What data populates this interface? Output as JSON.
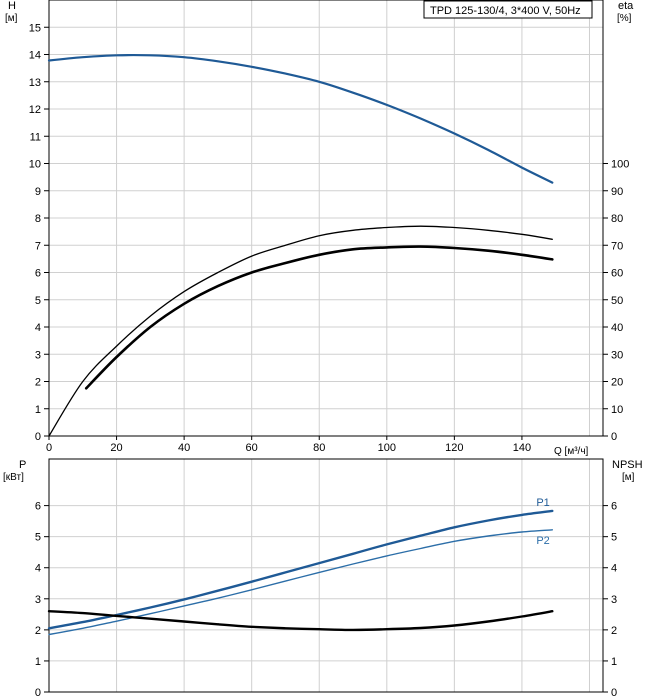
{
  "chart_data": [
    {
      "type": "line",
      "title": "TPD 125-130/4, 3*400 V, 50Hz",
      "y_axis_left": {
        "label": "H",
        "unit": "[м]",
        "range": [
          0,
          16
        ],
        "ticks": [
          "0",
          "1",
          "2",
          "3",
          "4",
          "5",
          "6",
          "7",
          "8",
          "9",
          "10",
          "11",
          "12",
          "13",
          "14",
          "15"
        ]
      },
      "y_axis_right": {
        "label": "eta",
        "unit": "[%]",
        "range": [
          0,
          160
        ],
        "ticks": [
          "0",
          "10",
          "20",
          "30",
          "40",
          "50",
          "60",
          "70",
          "80",
          "90",
          "100"
        ]
      },
      "x_axis": {
        "label": "Q [м³/ч]",
        "range": [
          0,
          164
        ],
        "ticks": [
          "0",
          "20",
          "40",
          "60",
          "80",
          "100",
          "120",
          "140"
        ]
      },
      "grid": true,
      "series": [
        {
          "axis": "left",
          "color": "#1f5a96",
          "x": [
            0,
            10,
            20,
            30,
            40,
            50,
            60,
            70,
            80,
            90,
            100,
            110,
            120,
            130,
            140,
            149
          ],
          "y": [
            13.78,
            13.9,
            13.97,
            13.97,
            13.9,
            13.75,
            13.55,
            13.3,
            13.0,
            12.6,
            12.15,
            11.65,
            11.1,
            10.5,
            9.85,
            9.3
          ]
        },
        {
          "axis": "right",
          "color": "#000000",
          "x": [
            0,
            10,
            20,
            30,
            40,
            50,
            60,
            70,
            80,
            90,
            100,
            110,
            120,
            130,
            140,
            149
          ],
          "y": [
            0,
            20,
            33,
            44,
            53,
            60,
            66,
            70,
            73.5,
            75.5,
            76.5,
            77,
            76.5,
            75.5,
            74,
            72.2
          ]
        },
        {
          "axis": "right",
          "color": "#000000",
          "x": [
            11,
            20,
            30,
            40,
            50,
            60,
            70,
            80,
            90,
            100,
            110,
            120,
            130,
            140,
            149
          ],
          "y": [
            17.5,
            29,
            40,
            48.5,
            55,
            60,
            63.5,
            66.5,
            68.5,
            69.2,
            69.5,
            69,
            68,
            66.5,
            64.8
          ]
        }
      ]
    },
    {
      "type": "line",
      "y_axis_left": {
        "label": "P",
        "unit": "[кВт]",
        "range": [
          0,
          7.5
        ],
        "ticks": [
          "0",
          "1",
          "2",
          "3",
          "4",
          "5",
          "6"
        ]
      },
      "y_axis_right": {
        "label": "NPSH",
        "unit": "[м]",
        "range": [
          0,
          7.5
        ],
        "ticks": [
          "0",
          "1",
          "2",
          "3",
          "4",
          "5",
          "6"
        ]
      },
      "x_axis": {
        "range": [
          0,
          164
        ]
      },
      "grid": true,
      "series": [
        {
          "name": "P1",
          "axis": "left",
          "color": "#1f5a96",
          "x": [
            0,
            10,
            20,
            30,
            40,
            50,
            60,
            70,
            80,
            90,
            100,
            110,
            120,
            130,
            140,
            149
          ],
          "y": [
            2.05,
            2.25,
            2.48,
            2.72,
            2.98,
            3.26,
            3.55,
            3.85,
            4.15,
            4.45,
            4.75,
            5.03,
            5.3,
            5.52,
            5.7,
            5.83
          ]
        },
        {
          "name": "P2",
          "axis": "left",
          "color": "#2c6ea8",
          "x": [
            0,
            10,
            20,
            30,
            40,
            50,
            60,
            70,
            80,
            90,
            100,
            110,
            120,
            130,
            140,
            149
          ],
          "y": [
            1.85,
            2.05,
            2.28,
            2.52,
            2.77,
            3.02,
            3.29,
            3.57,
            3.85,
            4.12,
            4.38,
            4.62,
            4.85,
            5.02,
            5.15,
            5.22
          ]
        },
        {
          "axis": "right",
          "color": "#000000",
          "x": [
            0,
            10,
            20,
            30,
            40,
            50,
            60,
            70,
            80,
            90,
            100,
            110,
            120,
            130,
            140,
            149
          ],
          "y": [
            2.6,
            2.54,
            2.45,
            2.36,
            2.27,
            2.18,
            2.1,
            2.05,
            2.02,
            2.0,
            2.02,
            2.06,
            2.14,
            2.27,
            2.43,
            2.6
          ]
        }
      ]
    }
  ]
}
